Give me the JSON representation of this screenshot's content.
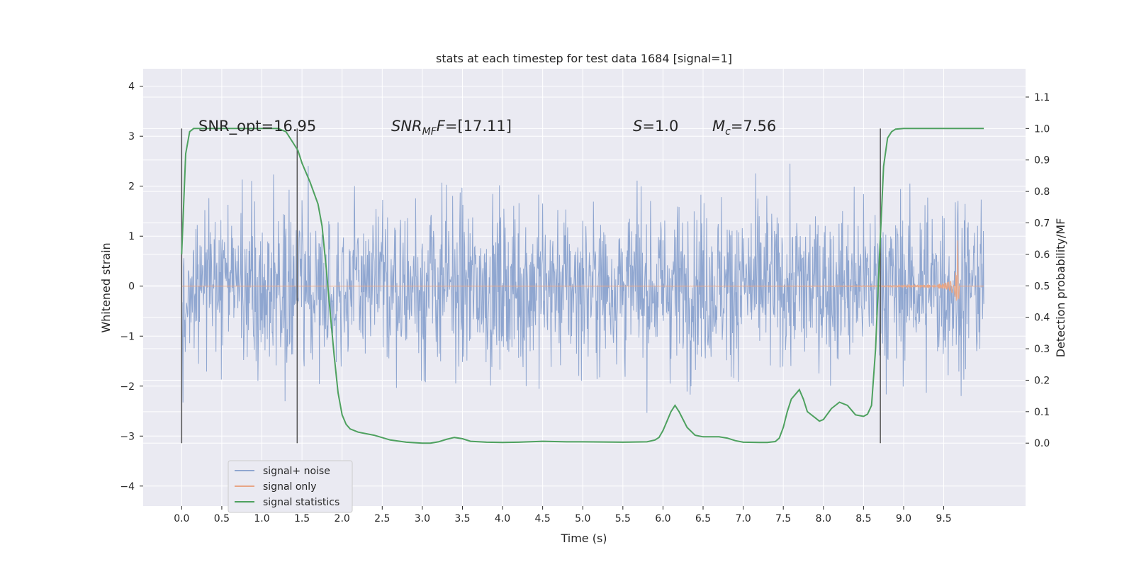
{
  "chart_data": {
    "type": "line",
    "title": "stats at each timestep for test data 1684 [signal=1]",
    "xlabel": "Time (s)",
    "ylabel": "Whitened strain",
    "y2label": "Detection probability/MF",
    "xlim": [
      -0.48,
      10.52
    ],
    "ylim": [
      -4.4,
      4.35
    ],
    "y2lim": [
      -0.2,
      1.19
    ],
    "xticks": [
      "0.0",
      "0.5",
      "1.0",
      "1.5",
      "2.0",
      "2.5",
      "3.0",
      "3.5",
      "4.0",
      "4.5",
      "5.0",
      "5.5",
      "6.0",
      "6.5",
      "7.0",
      "7.5",
      "8.0",
      "8.5",
      "9.0",
      "9.5"
    ],
    "yticks": [
      "4",
      "3",
      "2",
      "1",
      "0",
      "−1",
      "−2",
      "−3",
      "−4"
    ],
    "y2ticks": [
      "1.1",
      "1.0",
      "0.9",
      "0.8",
      "0.7",
      "0.6",
      "0.5",
      "0.4",
      "0.3",
      "0.2",
      "0.1",
      "0.0"
    ],
    "grid": true,
    "legend_position": "lower-left",
    "legend": [
      "signal+ noise",
      "signal only",
      "signal statistics"
    ],
    "annotations": {
      "snr_opt": "SNR_opt=16.95",
      "snr_mf": "=[17.11]",
      "s_value": "=1.0",
      "mc_value": "=7.56"
    },
    "vertical_lines_x": [
      0.0,
      1.44,
      8.71
    ],
    "colors": {
      "noise": "#8fa6d0",
      "signal": "#e8a686",
      "stats": "#4ea15f",
      "background": "#eaeaf2",
      "grid": "#ffffff",
      "vline": "#555555"
    },
    "series": [
      {
        "name": "signal statistics",
        "axis": "right",
        "x": [
          0.0,
          0.05,
          0.1,
          0.15,
          0.2,
          0.3,
          0.5,
          0.8,
          1.0,
          1.2,
          1.3,
          1.4,
          1.45,
          1.5,
          1.6,
          1.7,
          1.75,
          1.8,
          1.85,
          1.9,
          1.95,
          2.0,
          2.05,
          2.1,
          2.2,
          2.4,
          2.6,
          2.8,
          3.0,
          3.1,
          3.2,
          3.3,
          3.4,
          3.5,
          3.6,
          3.8,
          4.0,
          4.2,
          4.5,
          4.8,
          5.0,
          5.5,
          5.8,
          5.9,
          5.95,
          6.0,
          6.05,
          6.1,
          6.15,
          6.2,
          6.3,
          6.4,
          6.5,
          6.6,
          6.7,
          6.8,
          6.9,
          7.0,
          7.2,
          7.3,
          7.4,
          7.45,
          7.5,
          7.55,
          7.6,
          7.7,
          7.75,
          7.8,
          7.9,
          7.95,
          8.0,
          8.1,
          8.2,
          8.3,
          8.4,
          8.5,
          8.55,
          8.6,
          8.65,
          8.7,
          8.75,
          8.8,
          8.85,
          8.9,
          9.0,
          9.5,
          10.0
        ],
        "y": [
          0.6,
          0.92,
          0.99,
          1.0,
          1.0,
          1.0,
          1.0,
          1.0,
          1.0,
          1.0,
          0.99,
          0.95,
          0.93,
          0.89,
          0.83,
          0.76,
          0.69,
          0.56,
          0.42,
          0.28,
          0.16,
          0.09,
          0.06,
          0.045,
          0.035,
          0.025,
          0.01,
          0.003,
          0.0,
          0.0,
          0.004,
          0.012,
          0.018,
          0.014,
          0.006,
          0.003,
          0.002,
          0.003,
          0.006,
          0.004,
          0.004,
          0.003,
          0.004,
          0.01,
          0.018,
          0.04,
          0.07,
          0.1,
          0.12,
          0.1,
          0.05,
          0.025,
          0.02,
          0.02,
          0.02,
          0.016,
          0.008,
          0.003,
          0.002,
          0.002,
          0.005,
          0.016,
          0.05,
          0.1,
          0.14,
          0.17,
          0.14,
          0.1,
          0.08,
          0.07,
          0.075,
          0.11,
          0.13,
          0.12,
          0.09,
          0.085,
          0.092,
          0.12,
          0.3,
          0.6,
          0.88,
          0.97,
          0.99,
          0.998,
          1.0,
          1.0,
          1.0
        ]
      }
    ]
  }
}
